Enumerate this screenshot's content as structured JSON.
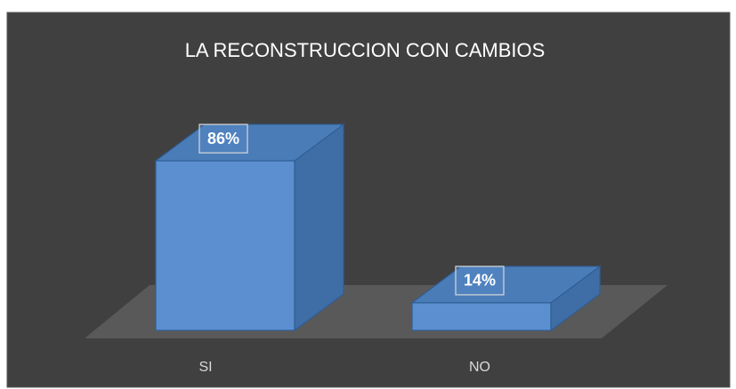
{
  "chart_data": {
    "type": "bar",
    "title": "LA RECONSTRUCCION CON CAMBIOS",
    "categories": [
      "SI",
      "NO"
    ],
    "values": [
      86,
      14
    ],
    "value_labels": [
      "86%",
      "14%"
    ],
    "color": "#5b8fcf"
  }
}
